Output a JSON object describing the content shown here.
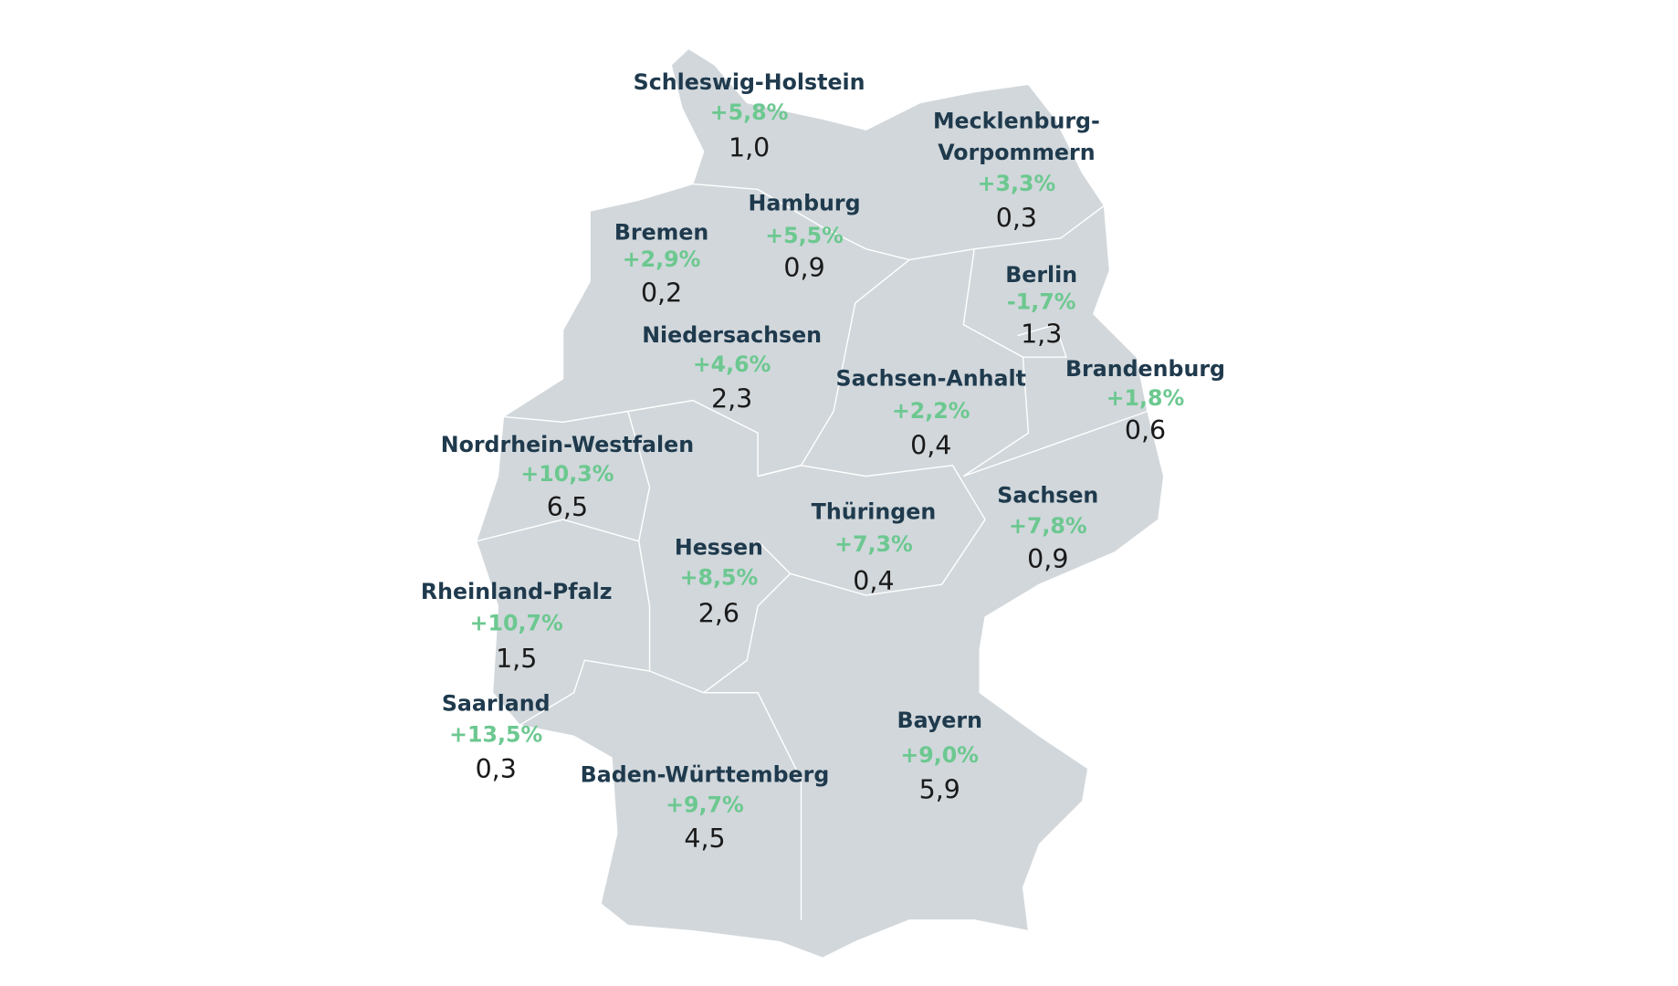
{
  "map": {
    "regions": [
      {
        "name": [
          "Schleswig-Holstein"
        ],
        "change": "+5,8%",
        "value": "1,0"
      },
      {
        "name": [
          "Mecklenburg-",
          "Vorpommern"
        ],
        "change": "+3,3%",
        "value": "0,3"
      },
      {
        "name": [
          "Hamburg"
        ],
        "change": "+5,5%",
        "value": "0,9"
      },
      {
        "name": [
          "Bremen"
        ],
        "change": "+2,9%",
        "value": "0,2"
      },
      {
        "name": [
          "Berlin"
        ],
        "change": "-1,7%",
        "value": "1,3"
      },
      {
        "name": [
          "Niedersachsen"
        ],
        "change": "+4,6%",
        "value": "2,3"
      },
      {
        "name": [
          "Sachsen-Anhalt"
        ],
        "change": "+2,2%",
        "value": "0,4"
      },
      {
        "name": [
          "Brandenburg"
        ],
        "change": "+1,8%",
        "value": "0,6"
      },
      {
        "name": [
          "Nordrhein-Westfalen"
        ],
        "change": "+10,3%",
        "value": "6,5"
      },
      {
        "name": [
          "Thüringen"
        ],
        "change": "+7,3%",
        "value": "0,4"
      },
      {
        "name": [
          "Sachsen"
        ],
        "change": "+7,8%",
        "value": "0,9"
      },
      {
        "name": [
          "Hessen"
        ],
        "change": "+8,5%",
        "value": "2,6"
      },
      {
        "name": [
          "Rheinland-Pfalz"
        ],
        "change": "+10,7%",
        "value": "1,5"
      },
      {
        "name": [
          "Saarland"
        ],
        "change": "+13,5%",
        "value": "0,3"
      },
      {
        "name": [
          "Baden-Württemberg"
        ],
        "change": "+9,7%",
        "value": "4,5"
      },
      {
        "name": [
          "Bayern"
        ],
        "change": "+9,0%",
        "value": "5,9"
      }
    ]
  }
}
